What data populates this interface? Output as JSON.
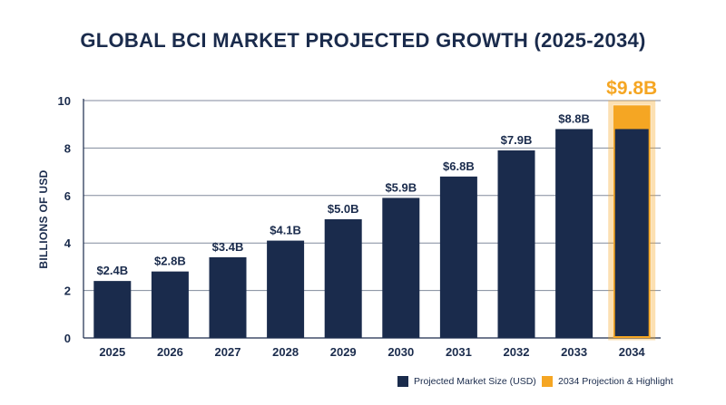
{
  "chart_data": {
    "type": "bar",
    "title": "GLOBAL BCI MARKET PROJECTED GROWTH (2025-2034)",
    "ylabel": "BILLIONS OF USD",
    "xlabel": "",
    "ylim": [
      0,
      10
    ],
    "yticks": [
      0,
      2,
      4,
      6,
      8,
      10
    ],
    "grid": true,
    "categories": [
      "2025",
      "2026",
      "2027",
      "2028",
      "2029",
      "2030",
      "2031",
      "2032",
      "2033",
      "2034"
    ],
    "values": [
      2.4,
      2.8,
      3.4,
      4.1,
      5.0,
      5.9,
      6.8,
      7.9,
      8.8,
      9.8
    ],
    "data_labels": [
      "$2.4B",
      "$2.8B",
      "$3.4B",
      "$4.1B",
      "$5.0B",
      "$5.9B",
      "$6.8B",
      "$7.9B",
      "$8.8B",
      "$9.8B"
    ],
    "highlight_index": 9,
    "colors": {
      "bar": "#1a2b4c",
      "highlight": "#f5a623",
      "text": "#1a2b4c",
      "grid": "#1a2b4c"
    },
    "legend_placement": "bottom-right",
    "legend": [
      {
        "label": "Projected Market Size (USD)",
        "color": "#1a2b4c"
      },
      {
        "label": "2034 Projection & Highlight",
        "color": "#f5a623"
      }
    ]
  }
}
